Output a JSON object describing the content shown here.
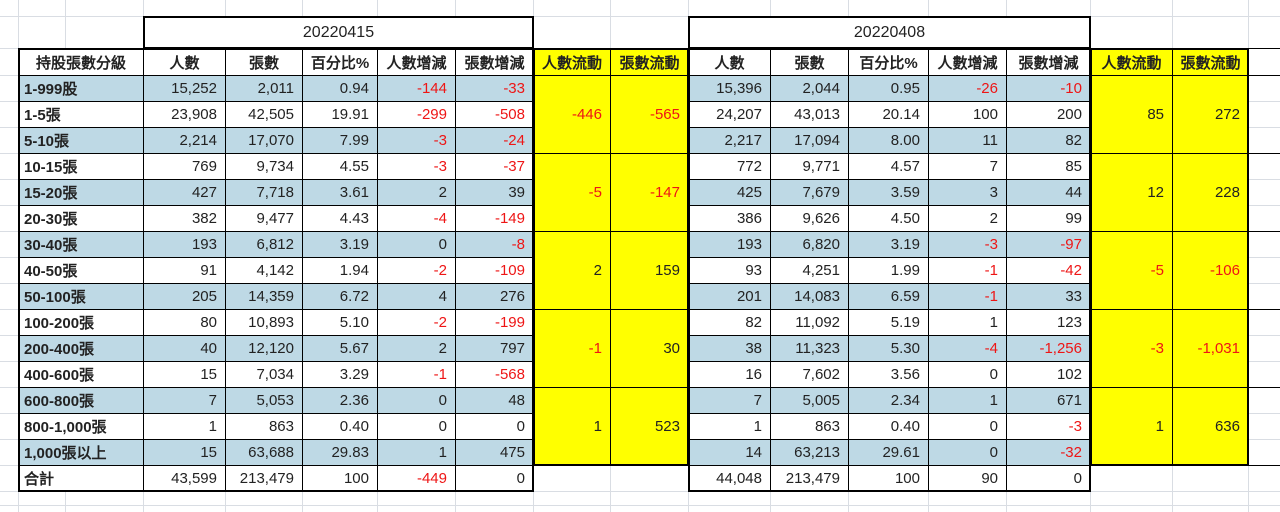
{
  "colors": {
    "row_alt": "#BED9E5",
    "flow_bg": "#FFFF00",
    "negative": "#EE1515",
    "grid": "#D9DDE3",
    "text": "#222222",
    "border": "#000000"
  },
  "row_header_label": "持股張數分級",
  "total_label": "合計",
  "categories": [
    "1-999股",
    "1-5張",
    "5-10張",
    "10-15張",
    "15-20張",
    "20-30張",
    "30-40張",
    "40-50張",
    "50-100張",
    "100-200張",
    "200-400張",
    "400-600張",
    "600-800張",
    "800-1,000張",
    "1,000張以上"
  ],
  "tables": [
    {
      "date": "20220415",
      "columns": [
        "人數",
        "張數",
        "百分比%",
        "人數增減",
        "張數增減"
      ],
      "flow_columns": [
        "人數流動",
        "張數流動"
      ],
      "rows": [
        [
          "15,252",
          "2,011",
          "0.94",
          "-144",
          "-33"
        ],
        [
          "23,908",
          "42,505",
          "19.91",
          "-299",
          "-508"
        ],
        [
          "2,214",
          "17,070",
          "7.99",
          "-3",
          "-24"
        ],
        [
          "769",
          "9,734",
          "4.55",
          "-3",
          "-37"
        ],
        [
          "427",
          "7,718",
          "3.61",
          "2",
          "39"
        ],
        [
          "382",
          "9,477",
          "4.43",
          "-4",
          "-149"
        ],
        [
          "193",
          "6,812",
          "3.19",
          "0",
          "-8"
        ],
        [
          "91",
          "4,142",
          "1.94",
          "-2",
          "-109"
        ],
        [
          "205",
          "14,359",
          "6.72",
          "4",
          "276"
        ],
        [
          "80",
          "10,893",
          "5.10",
          "-2",
          "-199"
        ],
        [
          "40",
          "12,120",
          "5.67",
          "2",
          "797"
        ],
        [
          "15",
          "7,034",
          "3.29",
          "-1",
          "-568"
        ],
        [
          "7",
          "5,053",
          "2.36",
          "0",
          "48"
        ],
        [
          "1",
          "863",
          "0.40",
          "0",
          "0"
        ],
        [
          "15",
          "63,688",
          "29.83",
          "1",
          "475"
        ]
      ],
      "flow_groups": [
        [
          "-446",
          "-565"
        ],
        [
          "-5",
          "-147"
        ],
        [
          "2",
          "159"
        ],
        [
          "-1",
          "30"
        ],
        [
          "1",
          "523"
        ]
      ],
      "total": [
        "43,599",
        "213,479",
        "100",
        "-449",
        "0"
      ]
    },
    {
      "date": "20220408",
      "columns": [
        "人數",
        "張數",
        "百分比%",
        "人數增減",
        "張數增減"
      ],
      "flow_columns": [
        "人數流動",
        "張數流動"
      ],
      "rows": [
        [
          "15,396",
          "2,044",
          "0.95",
          "-26",
          "-10"
        ],
        [
          "24,207",
          "43,013",
          "20.14",
          "100",
          "200"
        ],
        [
          "2,217",
          "17,094",
          "8.00",
          "11",
          "82"
        ],
        [
          "772",
          "9,771",
          "4.57",
          "7",
          "85"
        ],
        [
          "425",
          "7,679",
          "3.59",
          "3",
          "44"
        ],
        [
          "386",
          "9,626",
          "4.50",
          "2",
          "99"
        ],
        [
          "193",
          "6,820",
          "3.19",
          "-3",
          "-97"
        ],
        [
          "93",
          "4,251",
          "1.99",
          "-1",
          "-42"
        ],
        [
          "201",
          "14,083",
          "6.59",
          "-1",
          "33"
        ],
        [
          "82",
          "11,092",
          "5.19",
          "1",
          "123"
        ],
        [
          "38",
          "11,323",
          "5.30",
          "-4",
          "-1,256"
        ],
        [
          "16",
          "7,602",
          "3.56",
          "0",
          "102"
        ],
        [
          "7",
          "5,005",
          "2.34",
          "1",
          "671"
        ],
        [
          "1",
          "863",
          "0.40",
          "0",
          "-3"
        ],
        [
          "14",
          "63,213",
          "29.61",
          "0",
          "-32"
        ]
      ],
      "flow_groups": [
        [
          "85",
          "272"
        ],
        [
          "12",
          "228"
        ],
        [
          "-5",
          "-106"
        ],
        [
          "-3",
          "-1,031"
        ],
        [
          "1",
          "636"
        ]
      ],
      "total": [
        "44,048",
        "213,479",
        "100",
        "90",
        "0"
      ]
    }
  ]
}
